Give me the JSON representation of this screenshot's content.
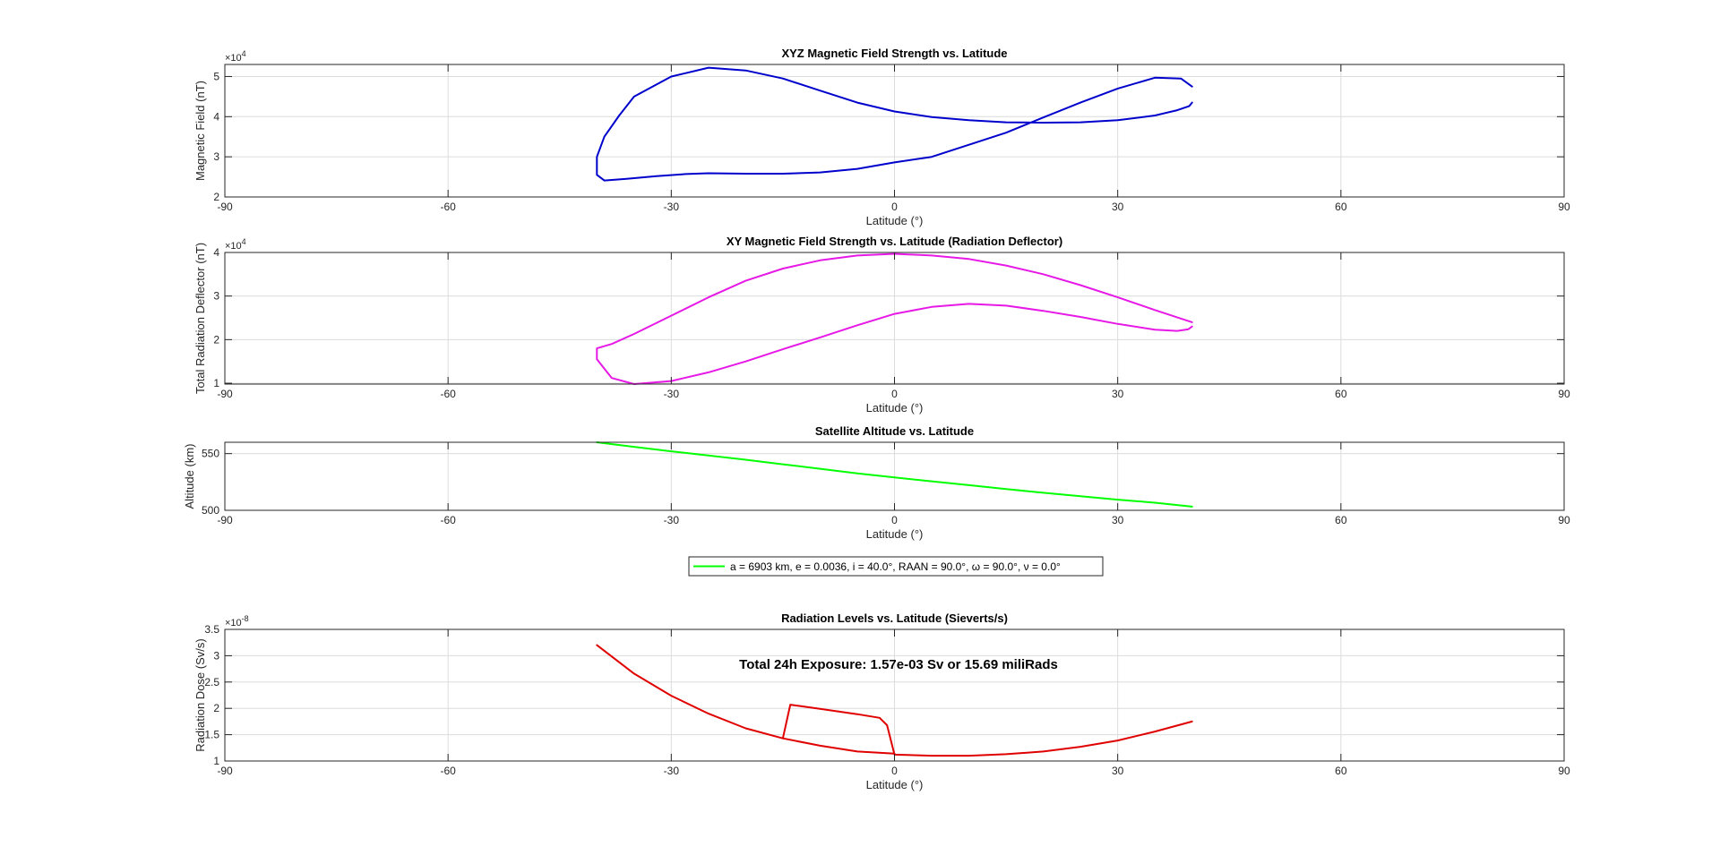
{
  "chart_data": [
    {
      "type": "line",
      "title": "XYZ Magnetic Field Strength vs. Latitude",
      "xlabel": "Latitude (°)",
      "ylabel": "Magnetic Field (nT)",
      "xlim": [
        -90,
        90
      ],
      "ylim": [
        20000,
        53000
      ],
      "xticks": [
        -90,
        -60,
        -30,
        0,
        30,
        60,
        90
      ],
      "xtick_labels": [
        "-90",
        "-60",
        "-30",
        "0",
        "30",
        "60",
        "90"
      ],
      "yticks": [
        20000,
        30000,
        40000,
        50000
      ],
      "ytick_labels": [
        "2",
        "3",
        "4",
        "5"
      ],
      "y_exponent_base": "×10",
      "y_exponent_power": "4",
      "grid": true,
      "series": [
        {
          "color": "#0000cd",
          "x": [
            40,
            38.5,
            35,
            30,
            25,
            20,
            15,
            10,
            5,
            0,
            -5,
            -10,
            -15,
            -20,
            -25,
            -28,
            -32,
            -36,
            -39,
            -40,
            -40,
            -39,
            -37,
            -35,
            -30,
            -25,
            -20,
            -15,
            -10,
            -5,
            0,
            5,
            10,
            15,
            20,
            25,
            30,
            35,
            38,
            39.6,
            40
          ],
          "y": [
            47500,
            49500,
            49700,
            47000,
            43500,
            39800,
            36000,
            33000,
            30000,
            28600,
            27000,
            26100,
            25800,
            25800,
            25900,
            25700,
            25200,
            24500,
            24100,
            25500,
            30000,
            35000,
            40300,
            45000,
            50000,
            52200,
            51500,
            49500,
            46500,
            43500,
            41300,
            39900,
            39100,
            38600,
            38500,
            38600,
            39100,
            40300,
            41600,
            42600,
            43500
          ]
        }
      ]
    },
    {
      "type": "line",
      "title": "XY Magnetic Field Strength vs. Latitude (Radiation Deflector)",
      "xlabel": "Latitude (°)",
      "ylabel": "Total Radiation Deflector (nT)",
      "xlim": [
        -90,
        90
      ],
      "ylim": [
        9800,
        40000
      ],
      "xticks": [
        -90,
        -60,
        -30,
        0,
        30,
        60,
        90
      ],
      "xtick_labels": [
        "-90",
        "-60",
        "-30",
        "0",
        "30",
        "60",
        "90"
      ],
      "yticks": [
        10000,
        20000,
        30000,
        40000
      ],
      "ytick_labels": [
        "1",
        "2",
        "3",
        "4"
      ],
      "y_exponent_base": "×10",
      "y_exponent_power": "4",
      "grid": true,
      "series": [
        {
          "color": "#e619e6",
          "x": [
            40,
            35,
            30,
            25,
            20,
            15,
            10,
            5,
            0,
            -5,
            -10,
            -15,
            -20,
            -25,
            -30,
            -35,
            -38,
            -40,
            -40,
            -38,
            -35,
            -30,
            -25,
            -20,
            -15,
            -10,
            -5,
            0,
            5,
            10,
            15,
            20,
            25,
            30,
            35,
            38,
            39.5,
            40
          ],
          "y": [
            24000,
            26800,
            29700,
            32500,
            35000,
            37000,
            38500,
            39300,
            39700,
            39300,
            38200,
            36300,
            33500,
            29700,
            25500,
            21300,
            19000,
            18000,
            15500,
            11200,
            9800,
            10500,
            12500,
            15000,
            17800,
            20500,
            23300,
            25900,
            27500,
            28200,
            27800,
            26600,
            25200,
            23600,
            22300,
            22000,
            22400,
            23000
          ]
        }
      ]
    },
    {
      "type": "line",
      "title": "Satellite Altitude vs. Latitude",
      "xlabel": "Latitude (°)",
      "ylabel": "Altitude (km)",
      "xlim": [
        -90,
        90
      ],
      "ylim": [
        500,
        560
      ],
      "xticks": [
        -90,
        -60,
        -30,
        0,
        30,
        60,
        90
      ],
      "xtick_labels": [
        "-90",
        "-60",
        "-30",
        "0",
        "30",
        "60",
        "90"
      ],
      "yticks": [
        500,
        550
      ],
      "ytick_labels": [
        "500",
        "550"
      ],
      "grid": true,
      "legend": "a = 6903 km, e = 0.0036, i = 40.0°, RAAN = 90.0°, ω = 90.0°, ν = 0.0°",
      "legend_placement": "below",
      "series": [
        {
          "color": "#00ff00",
          "name": "a = 6903 km, e = 0.0036, i = 40.0°, RAAN = 90.0°, ω = 90.0°, ν = 0.0°",
          "x": [
            -40,
            -35,
            -30,
            -25,
            -20,
            -15,
            -10,
            -5,
            0,
            5,
            10,
            15,
            20,
            25,
            30,
            35,
            40
          ],
          "y": [
            560,
            556,
            552,
            548.3,
            544.6,
            540.6,
            536.6,
            532.6,
            529,
            525.6,
            522.2,
            518.8,
            515.5,
            512.4,
            509.4,
            506.7,
            503.2
          ]
        }
      ]
    },
    {
      "type": "line",
      "title": "Radiation Levels vs. Latitude (Sieverts/s)",
      "xlabel": "Latitude (°)",
      "ylabel": "Radiation Dose (Sv/s)",
      "xlim": [
        -90,
        90
      ],
      "ylim": [
        1e-08,
        3.5e-08
      ],
      "xticks": [
        -90,
        -60,
        -30,
        0,
        30,
        60,
        90
      ],
      "xtick_labels": [
        "-90",
        "-60",
        "-30",
        "0",
        "30",
        "60",
        "90"
      ],
      "yticks": [
        1e-08,
        1.5e-08,
        2e-08,
        2.5e-08,
        3e-08,
        3.5e-08
      ],
      "ytick_labels": [
        "1",
        "1.5",
        "2",
        "2.5",
        "3",
        "3.5"
      ],
      "y_exponent_base": "×10",
      "y_exponent_power": "-8",
      "grid": true,
      "annotation": "Total 24h Exposure: 1.57e-03 Sv or 15.69 miliRads",
      "series": [
        {
          "color": "#e00000",
          "x": [
            -40,
            -35,
            -30,
            -25,
            -20,
            -15,
            -14,
            -13,
            -10,
            -5,
            -2,
            -1,
            0,
            0,
            5,
            10,
            15,
            20,
            25,
            30,
            35,
            40
          ],
          "y": [
            3.2e-08,
            2.66e-08,
            2.24e-08,
            1.9e-08,
            1.62e-08,
            1.43e-08,
            2.07e-08,
            2.05e-08,
            1.99e-08,
            1.89e-08,
            1.82e-08,
            1.68e-08,
            1.12e-08,
            1.12e-08,
            1.1e-08,
            1.1e-08,
            1.13e-08,
            1.18e-08,
            1.27e-08,
            1.39e-08,
            1.56e-08,
            1.75e-08
          ]
        },
        {
          "color": "#e00000",
          "x": [
            -15,
            -10,
            -5,
            0,
            0
          ],
          "y": [
            1.43e-08,
            1.29e-08,
            1.18e-08,
            1.14e-08,
            1.13e-08
          ]
        }
      ]
    }
  ]
}
